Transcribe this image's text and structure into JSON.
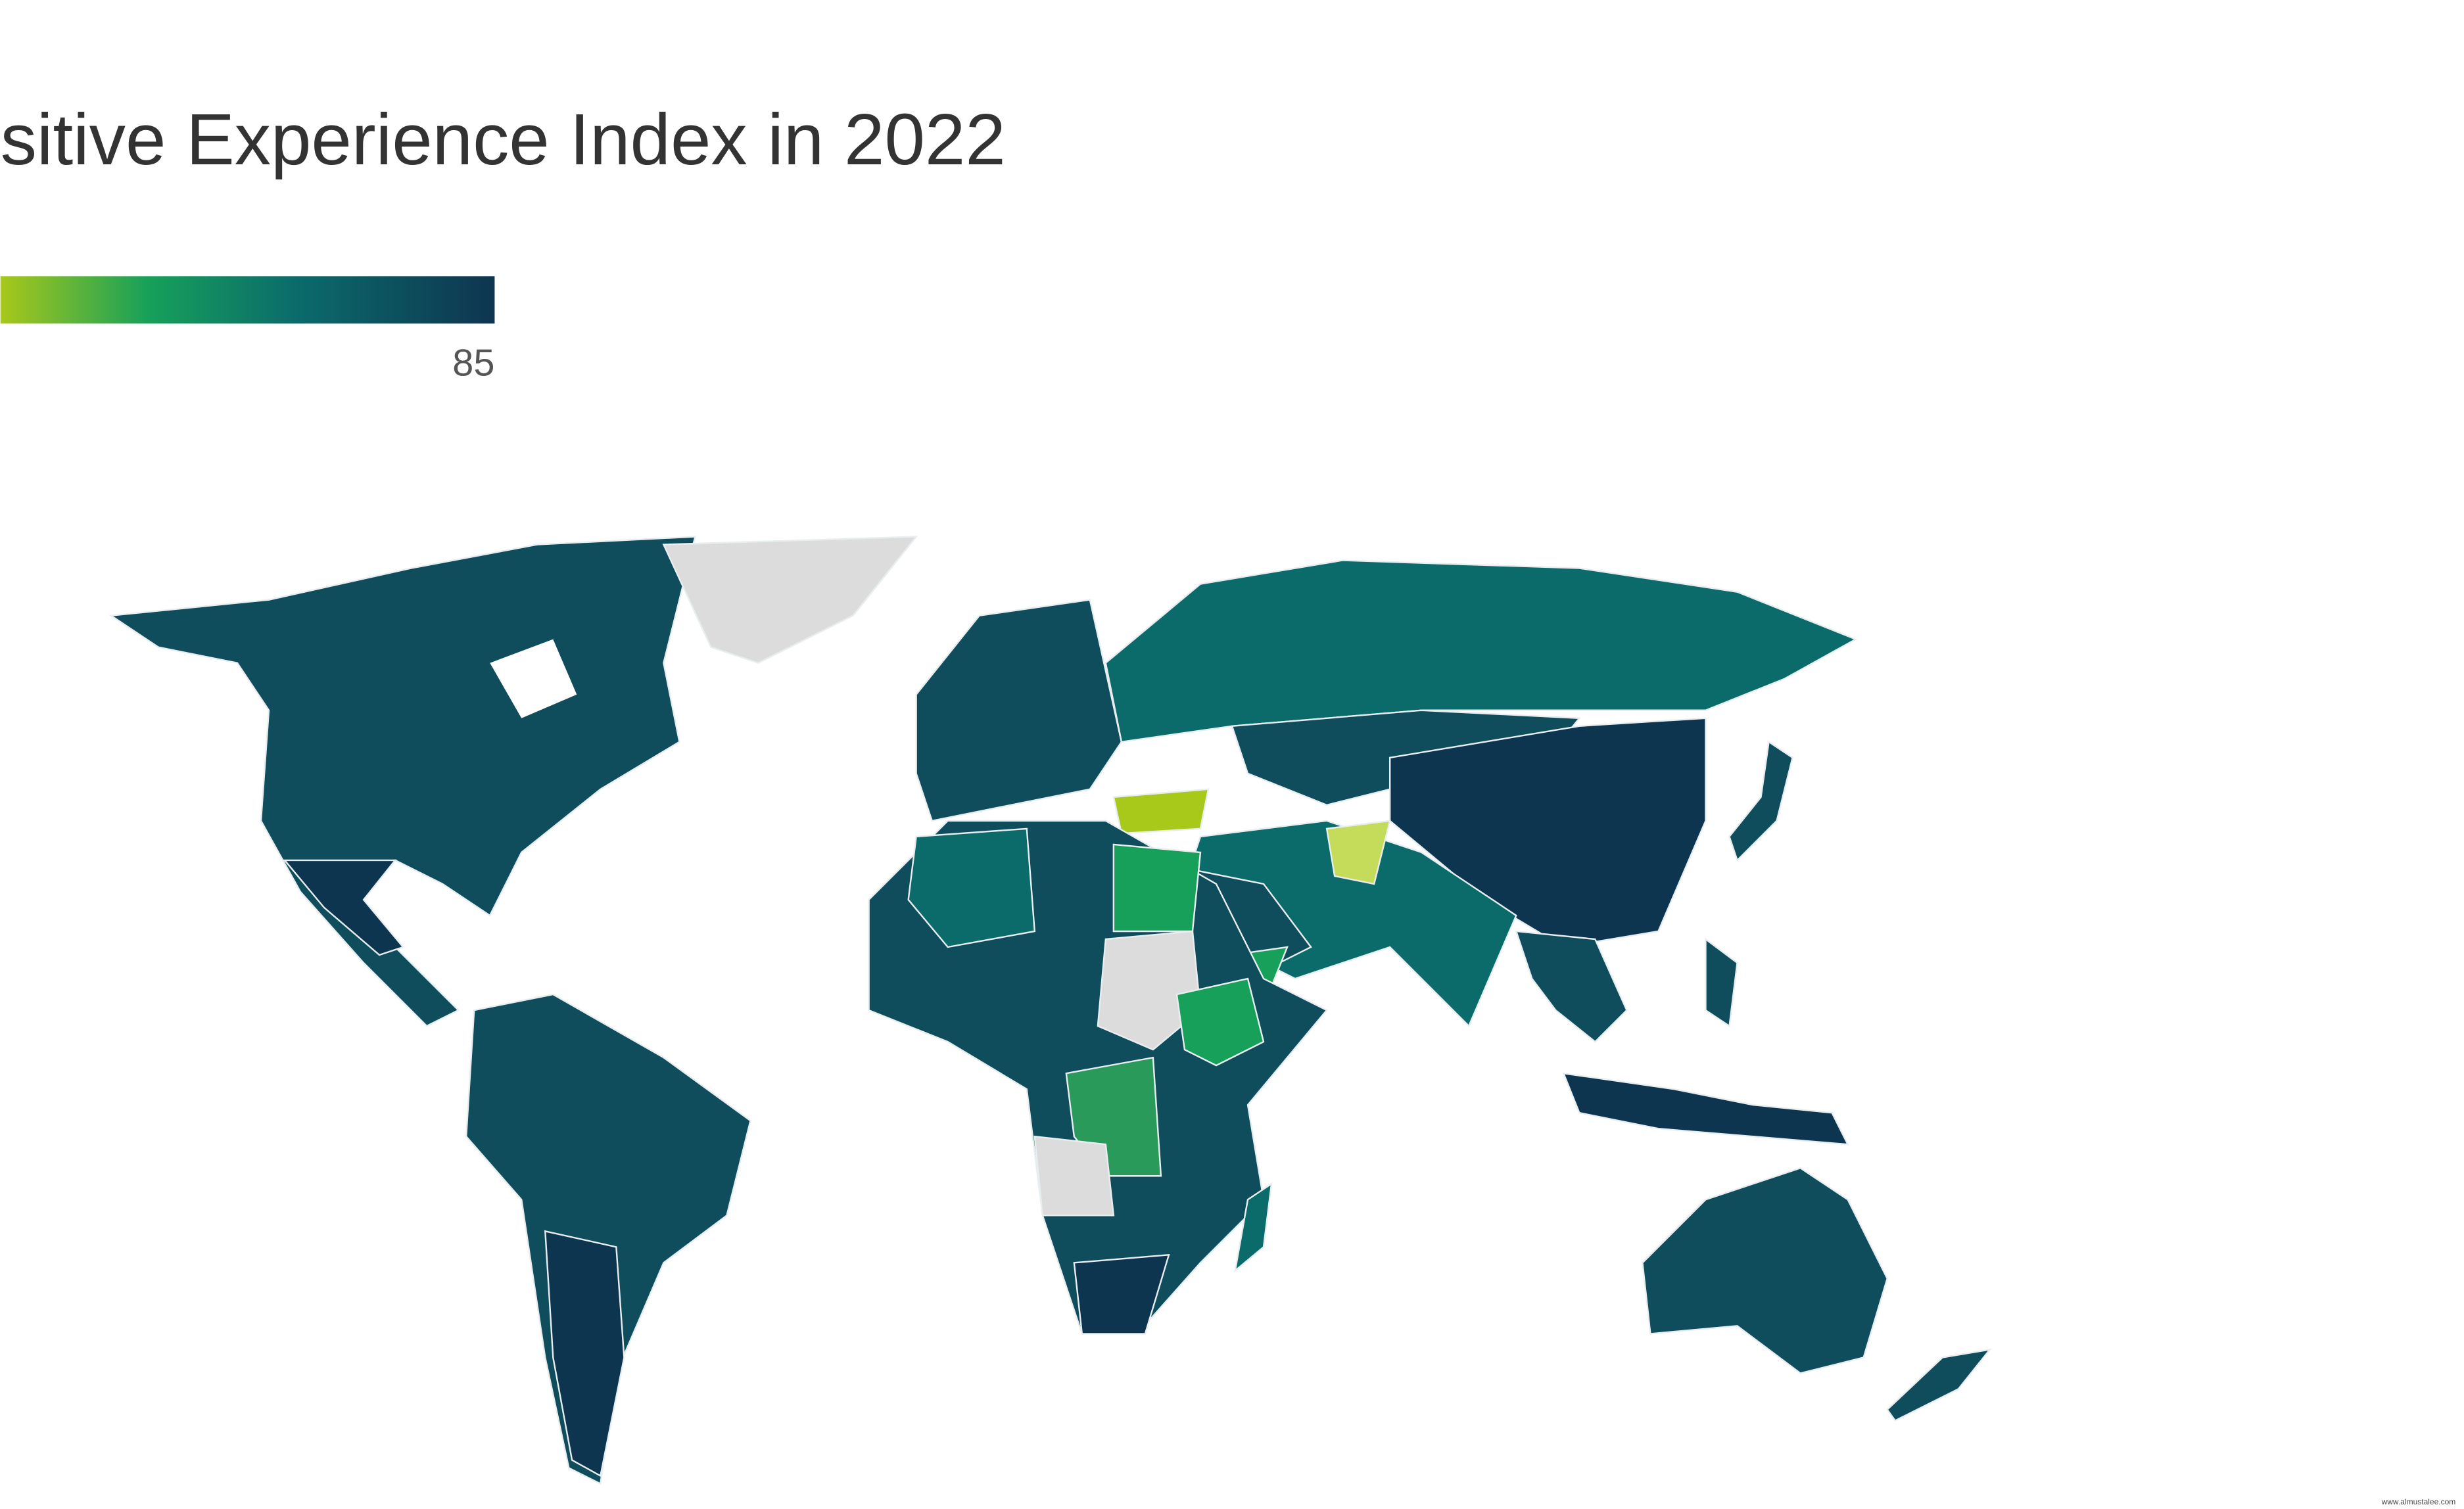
{
  "title": "sitive Experience Index in 2022",
  "legend": {
    "max": 85
  },
  "watermark": "www.almustalee.com"
}
